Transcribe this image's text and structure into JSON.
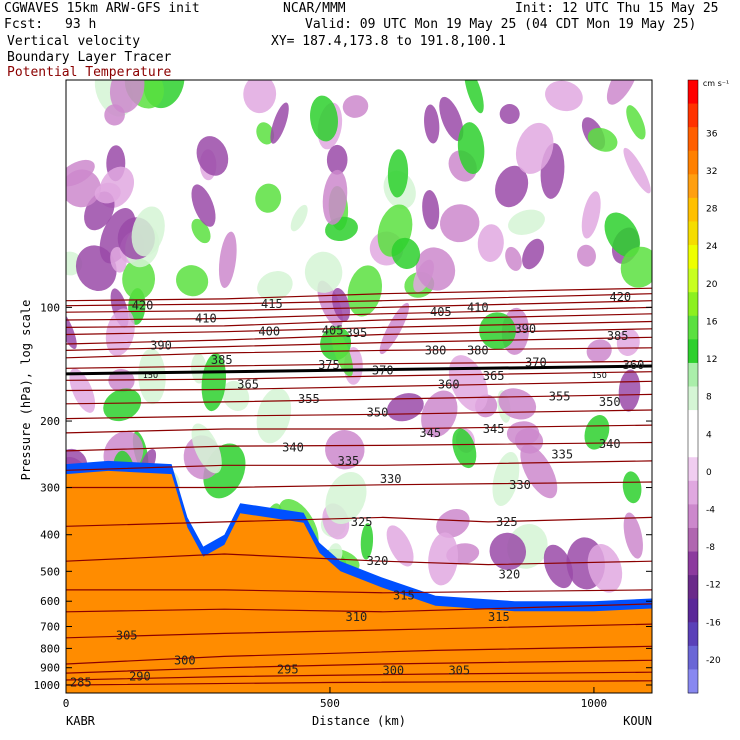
{
  "header": {
    "model": "CGWAVES 15km ARW-GFS init",
    "center": "NCAR/MMM",
    "init": "Init: 12 UTC Thu 15 May 25",
    "fcst_label": "Fcst:",
    "fcst_value": "93 h",
    "valid": "Valid: 09 UTC Mon 19 May 25 (04 CDT Mon 19 May 25)",
    "field1": "Vertical velocity",
    "field2": "Boundary Layer Tracer",
    "field3": "Potential Temperature",
    "xy": "XY= 187.4,173.8 to 191.8,100.1"
  },
  "colors": {
    "theta": "#8b0000",
    "tropopause": "#000000",
    "text": "#000000"
  },
  "chart_data": {
    "type": "heatmap",
    "title": "Vertical velocity / Boundary Layer Tracer / Potential Temperature cross-section",
    "xlabel": "Distance (km)",
    "ylabel": "Pressure (hPa), log scale",
    "xlim": [
      0,
      1110
    ],
    "ylim": [
      1050,
      25
    ],
    "x_ticks": [
      0,
      500,
      1000
    ],
    "y_ticks": [
      100,
      200,
      300,
      400,
      500,
      600,
      700,
      800,
      900,
      1000
    ],
    "endpoints": {
      "left": "KABR",
      "right": "KOUN"
    },
    "colorbar": {
      "units": "cm s⁻¹",
      "labels": [
        36,
        32,
        28,
        24,
        20,
        16,
        12,
        8,
        4,
        0,
        -4,
        -8,
        -12,
        -16,
        -20
      ],
      "colors": [
        "#ff0000",
        "#ff3300",
        "#ff5f00",
        "#ff8000",
        "#ff9f10",
        "#ffc000",
        "#f5dd00",
        "#eeff00",
        "#c8ff20",
        "#8cf020",
        "#5be040",
        "#2dd02d",
        "#aaeeaa",
        "#d5f5d5",
        "#ffffff",
        "#ffffff",
        "#f0cdf0",
        "#e0a8e0",
        "#cc88cc",
        "#b066b0",
        "#8c3a9e",
        "#6a2a8a",
        "#5a2898",
        "#5a40b8",
        "#6a66d6",
        "#8888f0"
      ]
    },
    "tropopause_label": "150",
    "theta_contours": [
      {
        "label": "285",
        "p": [
          [
            0,
            1000
          ],
          [
            500,
            985
          ],
          [
            1110,
            975
          ]
        ]
      },
      {
        "label": "290",
        "p": [
          [
            0,
            970
          ],
          [
            300,
            950
          ],
          [
            700,
            935
          ],
          [
            1110,
            925
          ]
        ]
      },
      {
        "label": "295",
        "p": [
          [
            0,
            930
          ],
          [
            300,
            900
          ],
          [
            600,
            880
          ],
          [
            1110,
            860
          ]
        ]
      },
      {
        "label": "300",
        "p": [
          [
            0,
            880
          ],
          [
            300,
            840
          ],
          [
            700,
            810
          ],
          [
            1110,
            790
          ]
        ]
      },
      {
        "label": "305",
        "p": [
          [
            0,
            750
          ],
          [
            300,
            730
          ],
          [
            700,
            710
          ],
          [
            1110,
            690
          ]
        ]
      },
      {
        "label": "310",
        "p": [
          [
            0,
            640
          ],
          [
            300,
            630
          ],
          [
            600,
            640
          ],
          [
            1110,
            610
          ]
        ]
      },
      {
        "label": "315",
        "p": [
          [
            0,
            560
          ],
          [
            300,
            560
          ],
          [
            600,
            570
          ],
          [
            1110,
            560
          ]
        ]
      },
      {
        "label": "320",
        "p": [
          [
            0,
            470
          ],
          [
            300,
            450
          ],
          [
            600,
            470
          ],
          [
            800,
            480
          ],
          [
            1110,
            470
          ]
        ]
      },
      {
        "label": "325",
        "p": [
          [
            0,
            380
          ],
          [
            300,
            370
          ],
          [
            600,
            360
          ],
          [
            800,
            370
          ],
          [
            1110,
            360
          ]
        ]
      },
      {
        "label": "330",
        "p": [
          [
            0,
            300
          ],
          [
            300,
            300
          ],
          [
            600,
            295
          ],
          [
            1110,
            290
          ]
        ]
      },
      {
        "label": "335",
        "p": [
          [
            0,
            270
          ],
          [
            300,
            262
          ],
          [
            600,
            262
          ],
          [
            1110,
            255
          ]
        ]
      },
      {
        "label": "340",
        "p": [
          [
            0,
            240
          ],
          [
            300,
            233
          ],
          [
            600,
            232
          ],
          [
            1110,
            228
          ]
        ]
      },
      {
        "label": "345",
        "p": [
          [
            0,
            215
          ],
          [
            300,
            210
          ],
          [
            600,
            210
          ],
          [
            1110,
            205
          ]
        ]
      },
      {
        "label": "350",
        "p": [
          [
            0,
            197
          ],
          [
            300,
            194
          ],
          [
            600,
            192
          ],
          [
            1110,
            187
          ]
        ]
      },
      {
        "label": "355",
        "p": [
          [
            0,
            180
          ],
          [
            300,
            178
          ],
          [
            600,
            175
          ],
          [
            1110,
            170
          ]
        ]
      },
      {
        "label": "360",
        "p": [
          [
            0,
            166
          ],
          [
            300,
            165
          ],
          [
            600,
            162
          ],
          [
            1110,
            157
          ]
        ]
      },
      {
        "label": "365",
        "p": [
          [
            0,
            156
          ],
          [
            300,
            155
          ],
          [
            600,
            152
          ],
          [
            1110,
            148
          ]
        ]
      },
      {
        "label": "370",
        "p": [
          [
            0,
            150
          ],
          [
            300,
            148
          ],
          [
            600,
            146
          ],
          [
            1110,
            143
          ]
        ]
      },
      {
        "label": "375",
        "p": [
          [
            0,
            145
          ],
          [
            300,
            143
          ],
          [
            600,
            141
          ],
          [
            1110,
            139
          ]
        ]
      },
      {
        "label": "380",
        "p": [
          [
            0,
            136
          ],
          [
            300,
            132
          ],
          [
            600,
            130
          ],
          [
            1110,
            128
          ]
        ]
      },
      {
        "label": "385",
        "p": [
          [
            0,
            130
          ],
          [
            300,
            127
          ],
          [
            600,
            124
          ],
          [
            1110,
            120
          ]
        ]
      },
      {
        "label": "390",
        "p": [
          [
            0,
            125
          ],
          [
            300,
            122
          ],
          [
            600,
            118
          ],
          [
            1110,
            114
          ]
        ]
      },
      {
        "label": "395",
        "p": [
          [
            0,
            118
          ],
          [
            300,
            116
          ],
          [
            600,
            113
          ],
          [
            1110,
            109
          ]
        ]
      },
      {
        "label": "400",
        "p": [
          [
            0,
            113
          ],
          [
            300,
            112
          ],
          [
            600,
            108
          ],
          [
            1110,
            104
          ]
        ]
      },
      {
        "label": "405",
        "p": [
          [
            0,
            108
          ],
          [
            300,
            107
          ],
          [
            600,
            104
          ],
          [
            1110,
            100
          ]
        ]
      },
      {
        "label": "410",
        "p": [
          [
            0,
            103
          ],
          [
            300,
            102
          ],
          [
            600,
            100
          ],
          [
            1110,
            96
          ]
        ]
      },
      {
        "label": "415",
        "p": [
          [
            0,
            99
          ],
          [
            300,
            98
          ],
          [
            600,
            96
          ],
          [
            1110,
            92
          ]
        ]
      },
      {
        "label": "420",
        "p": [
          [
            0,
            96
          ],
          [
            300,
            95
          ],
          [
            600,
            92
          ],
          [
            1110,
            89
          ]
        ]
      }
    ],
    "theta_label_positions": [
      {
        "t": "285",
        "x": 28,
        "p": 985
      },
      {
        "t": "290",
        "x": 140,
        "p": 950
      },
      {
        "t": "295",
        "x": 420,
        "p": 910
      },
      {
        "t": "300",
        "x": 225,
        "p": 860
      },
      {
        "t": "300",
        "x": 620,
        "p": 915
      },
      {
        "t": "305",
        "x": 115,
        "p": 740
      },
      {
        "t": "305",
        "x": 745,
        "p": 915
      },
      {
        "t": "310",
        "x": 550,
        "p": 660
      },
      {
        "t": "315",
        "x": 640,
        "p": 580
      },
      {
        "t": "315",
        "x": 820,
        "p": 660
      },
      {
        "t": "320",
        "x": 590,
        "p": 470
      },
      {
        "t": "320",
        "x": 840,
        "p": 510
      },
      {
        "t": "325",
        "x": 560,
        "p": 370
      },
      {
        "t": "325",
        "x": 835,
        "p": 370
      },
      {
        "t": "330",
        "x": 615,
        "p": 285
      },
      {
        "t": "330",
        "x": 860,
        "p": 295
      },
      {
        "t": "335",
        "x": 535,
        "p": 255
      },
      {
        "t": "335",
        "x": 940,
        "p": 245
      },
      {
        "t": "340",
        "x": 430,
        "p": 235
      },
      {
        "t": "340",
        "x": 1030,
        "p": 230
      },
      {
        "t": "345",
        "x": 690,
        "p": 215
      },
      {
        "t": "345",
        "x": 810,
        "p": 210
      },
      {
        "t": "350",
        "x": 590,
        "p": 190
      },
      {
        "t": "350",
        "x": 1030,
        "p": 178
      },
      {
        "t": "355",
        "x": 460,
        "p": 175
      },
      {
        "t": "355",
        "x": 935,
        "p": 172
      },
      {
        "t": "360",
        "x": 725,
        "p": 160
      },
      {
        "t": "360",
        "x": 1075,
        "p": 142
      },
      {
        "t": "365",
        "x": 345,
        "p": 160
      },
      {
        "t": "365",
        "x": 810,
        "p": 152
      },
      {
        "t": "370",
        "x": 600,
        "p": 147
      },
      {
        "t": "370",
        "x": 890,
        "p": 140
      },
      {
        "t": "375",
        "x": 498,
        "p": 142
      },
      {
        "t": "380",
        "x": 700,
        "p": 130
      },
      {
        "t": "380",
        "x": 780,
        "p": 130
      },
      {
        "t": "385",
        "x": 295,
        "p": 138
      },
      {
        "t": "385",
        "x": 1045,
        "p": 119
      },
      {
        "t": "390",
        "x": 180,
        "p": 126
      },
      {
        "t": "390",
        "x": 870,
        "p": 114
      },
      {
        "t": "395",
        "x": 550,
        "p": 117
      },
      {
        "t": "400",
        "x": 385,
        "p": 116
      },
      {
        "t": "405",
        "x": 505,
        "p": 115
      },
      {
        "t": "405",
        "x": 710,
        "p": 103
      },
      {
        "t": "410",
        "x": 265,
        "p": 107
      },
      {
        "t": "410",
        "x": 780,
        "p": 100
      },
      {
        "t": "415",
        "x": 390,
        "p": 98
      },
      {
        "t": "420",
        "x": 145,
        "p": 99
      },
      {
        "t": "420",
        "x": 1050,
        "p": 94
      }
    ],
    "tracer_boundary_hPa": [
      [
        0,
        260
      ],
      [
        80,
        255
      ],
      [
        200,
        260
      ],
      [
        230,
        360
      ],
      [
        260,
        430
      ],
      [
        300,
        400
      ],
      [
        330,
        330
      ],
      [
        450,
        350
      ],
      [
        480,
        420
      ],
      [
        520,
        470
      ],
      [
        600,
        520
      ],
      [
        700,
        580
      ],
      [
        850,
        600
      ],
      [
        1000,
        600
      ],
      [
        1110,
        590
      ]
    ]
  }
}
